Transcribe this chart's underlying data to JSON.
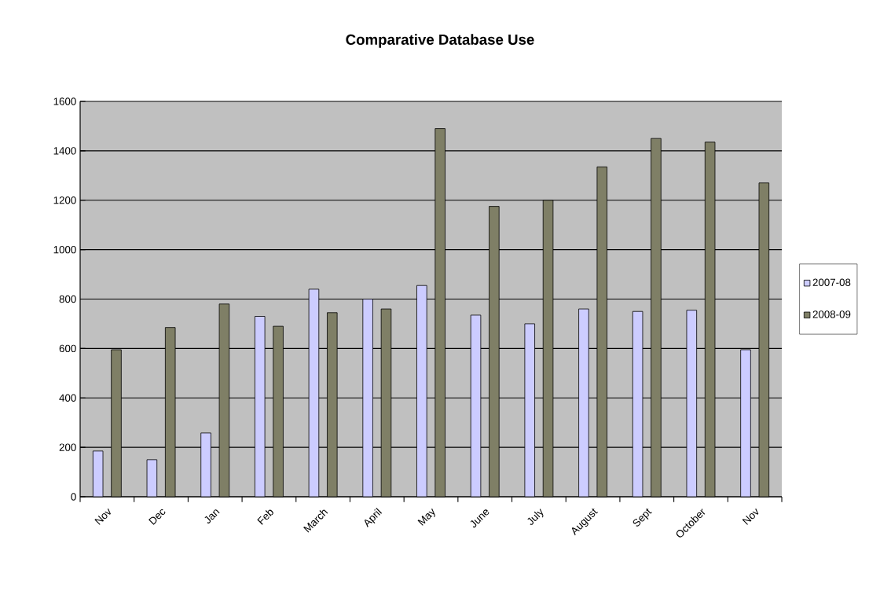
{
  "chart_data": {
    "type": "bar",
    "title": "Comparative Database Use",
    "categories": [
      "Nov",
      "Dec",
      "Jan",
      "Feb",
      "March",
      "April",
      "May",
      "June",
      "July",
      "August",
      "Sept",
      "October",
      "Nov"
    ],
    "series": [
      {
        "name": "2007-08",
        "color": "#ccccff",
        "values": [
          185,
          150,
          258,
          730,
          840,
          800,
          855,
          735,
          700,
          760,
          750,
          755,
          595
        ]
      },
      {
        "name": "2008-09",
        "color": "#7f7f66",
        "values": [
          595,
          685,
          780,
          690,
          745,
          760,
          1490,
          1175,
          1200,
          1335,
          1450,
          1435,
          1270
        ]
      }
    ],
    "ylim": [
      0,
      1600
    ],
    "yticks": [
      0,
      200,
      400,
      600,
      800,
      1000,
      1200,
      1400,
      1600
    ],
    "grid": "y",
    "legend": "right"
  }
}
